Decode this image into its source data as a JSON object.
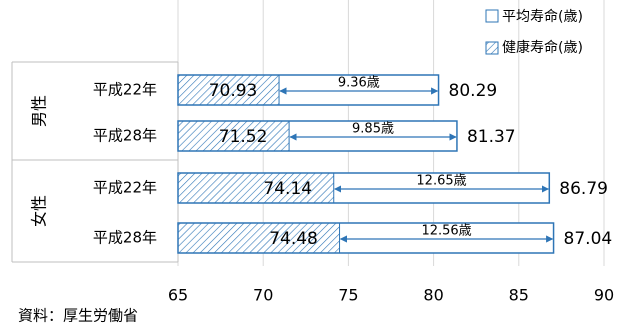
{
  "chart_data": {
    "type": "bar",
    "orientation": "horizontal",
    "stacked_overlay": true,
    "xlim": [
      65,
      90
    ],
    "x_ticks": [
      65,
      70,
      75,
      80,
      85,
      90
    ],
    "groups": [
      {
        "label": "男性",
        "categories": [
          "平成22年",
          "平成28年"
        ]
      },
      {
        "label": "女性",
        "categories": [
          "平成22年",
          "平成28年"
        ]
      }
    ],
    "series": [
      {
        "name": "平均寿命(歳)",
        "pattern": "outline",
        "values": [
          80.29,
          81.37,
          86.79,
          87.04
        ],
        "value_labels": [
          "80.29",
          "81.37",
          "86.79",
          "87.04"
        ]
      },
      {
        "name": "健康寿命(歳)",
        "pattern": "hatch",
        "values": [
          70.93,
          71.52,
          74.14,
          74.48
        ],
        "value_labels": [
          "70.93",
          "71.52",
          "74.14",
          "74.48"
        ]
      }
    ],
    "differences": [
      "9.36歳",
      "9.85歳",
      "12.65歳",
      "12.56歳"
    ],
    "legend": {
      "position": "top-right"
    },
    "source": "資料：厚生労働省",
    "grid": true
  },
  "colors": {
    "bar_stroke": "#2e75b6",
    "hatch": "#2e75b6",
    "grid": "#d9d9d9",
    "arrow": "#2e75b6"
  }
}
